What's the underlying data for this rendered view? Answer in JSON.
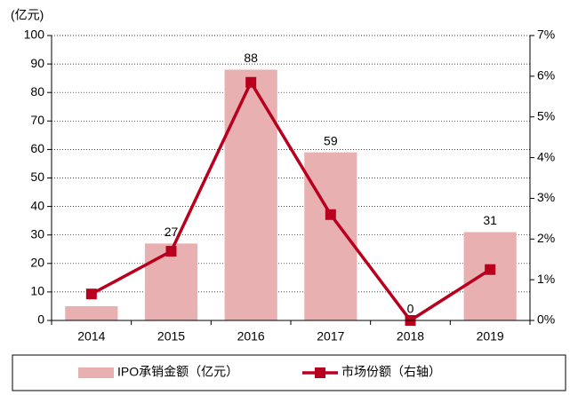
{
  "chart_data": {
    "type": "bar",
    "y_label": "(亿元)",
    "categories": [
      "2014",
      "2015",
      "2016",
      "2017",
      "2018",
      "2019"
    ],
    "series": [
      {
        "name": "IPO承销金额（亿元）",
        "type": "bar",
        "color": "#e8b0b0",
        "values": [
          5,
          27,
          88,
          59,
          0,
          31
        ]
      },
      {
        "name": "市场份额（右轴）",
        "type": "line",
        "axis": "y2",
        "color": "#b8001e",
        "values": [
          0.65,
          1.7,
          5.85,
          2.6,
          0,
          1.25
        ]
      }
    ],
    "ylim": [
      0,
      100
    ],
    "yticks": [
      0,
      10,
      20,
      30,
      40,
      50,
      60,
      70,
      80,
      90,
      100
    ],
    "y2lim": [
      0,
      7
    ],
    "y2ticks": [
      {
        "value": 0,
        "label": "0%"
      },
      {
        "value": 1,
        "label": "1%"
      },
      {
        "value": 2,
        "label": "2%"
      },
      {
        "value": 3,
        "label": "3%"
      },
      {
        "value": 4,
        "label": "4%"
      },
      {
        "value": 5,
        "label": "5%"
      },
      {
        "value": 6,
        "label": "6%"
      },
      {
        "value": 7,
        "label": "7%"
      }
    ],
    "grid": true,
    "legend": "bottom"
  }
}
